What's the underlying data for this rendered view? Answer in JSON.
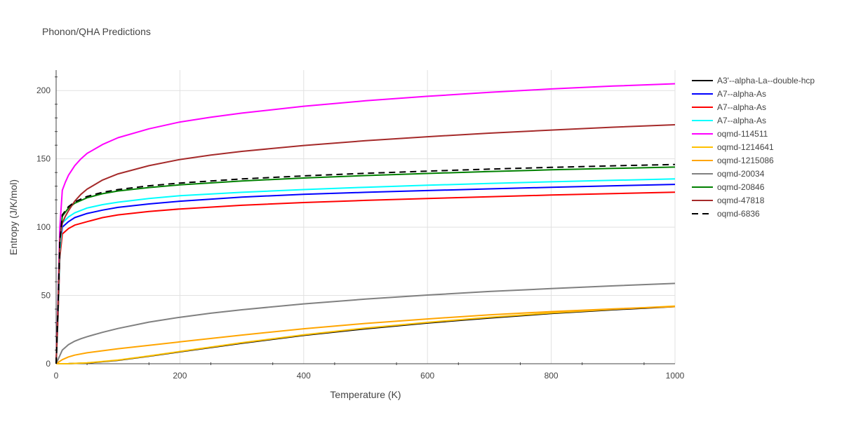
{
  "chart_data": {
    "type": "line",
    "title": "Phonon/QHA Predictions",
    "xlabel": "Temperature (K)",
    "ylabel": "Entropy (J/K/mol)",
    "xlim": [
      0,
      1000
    ],
    "ylim": [
      0,
      215
    ],
    "x_ticks": [
      0,
      200,
      400,
      600,
      800,
      1000
    ],
    "y_ticks": [
      0,
      50,
      100,
      150,
      200
    ],
    "grid": true,
    "legend_position": "right",
    "series": [
      {
        "name": "A3'--alpha-La--double-hcp",
        "color": "#000000",
        "dash": "solid",
        "x": [
          0,
          20,
          50,
          100,
          150,
          200,
          300,
          400,
          500,
          600,
          700,
          800,
          900,
          1000
        ],
        "y": [
          0,
          0.05,
          0.5,
          2.5,
          5.5,
          8.7,
          15,
          20.8,
          25.6,
          29.8,
          33.5,
          36.8,
          39.5,
          41.8
        ]
      },
      {
        "name": "A7--alpha-As",
        "color": "#0000ff",
        "dash": "solid",
        "x": [
          0,
          3,
          6,
          10,
          20,
          30,
          50,
          75,
          100,
          150,
          200,
          300,
          400,
          500,
          600,
          700,
          800,
          900,
          1000
        ],
        "y": [
          0,
          35,
          80,
          100,
          104,
          107,
          110,
          112.5,
          114.5,
          117,
          119,
          122,
          124,
          125.5,
          126.8,
          128,
          129.2,
          130.3,
          131.3
        ]
      },
      {
        "name": "A7--alpha-As",
        "color": "#ff0000",
        "dash": "solid",
        "x": [
          0,
          3,
          6,
          10,
          20,
          30,
          50,
          75,
          100,
          150,
          200,
          300,
          400,
          500,
          600,
          700,
          800,
          900,
          1000
        ],
        "y": [
          0,
          33,
          78,
          95,
          99,
          101.5,
          104,
          107,
          109,
          111.5,
          113.3,
          116,
          118,
          119.6,
          121,
          122.3,
          123.5,
          124.6,
          125.6
        ]
      },
      {
        "name": "A7--alpha-As",
        "color": "#00ffff",
        "dash": "solid",
        "x": [
          0,
          3,
          6,
          10,
          20,
          30,
          50,
          75,
          100,
          150,
          200,
          300,
          400,
          500,
          600,
          700,
          800,
          900,
          1000
        ],
        "y": [
          0,
          36,
          82,
          103,
          107.5,
          110.5,
          114,
          116.5,
          118.3,
          121,
          123,
          125.5,
          127.5,
          129.2,
          130.7,
          132,
          133.2,
          134.3,
          135.3
        ]
      },
      {
        "name": "oqmd-114511",
        "color": "#ff00ff",
        "dash": "solid",
        "x": [
          0,
          3,
          6,
          10,
          15,
          20,
          30,
          40,
          50,
          75,
          100,
          150,
          200,
          250,
          300,
          400,
          500,
          600,
          700,
          800,
          900,
          1000
        ],
        "y": [
          0,
          45,
          100,
          127,
          133,
          138,
          145,
          150,
          154,
          160.5,
          165.5,
          172,
          177,
          180.5,
          183.5,
          188.5,
          192.5,
          195.8,
          198.7,
          201.2,
          203.3,
          205
        ]
      },
      {
        "name": "oqmd-1214641",
        "color": "#ffc000",
        "dash": "solid",
        "x": [
          0,
          20,
          50,
          100,
          150,
          200,
          300,
          400,
          500,
          600,
          700,
          800,
          900,
          1000
        ],
        "y": [
          0,
          0.07,
          0.6,
          2.7,
          5.7,
          9,
          15.4,
          21.2,
          26.1,
          30.3,
          34,
          37.2,
          39.9,
          42.2
        ]
      },
      {
        "name": "oqmd-1215086",
        "color": "#ffa500",
        "dash": "solid",
        "x": [
          0,
          5,
          10,
          20,
          30,
          50,
          75,
          100,
          150,
          200,
          300,
          400,
          500,
          600,
          700,
          800,
          900,
          1000
        ],
        "y": [
          0,
          1.5,
          3,
          5,
          6.3,
          8,
          9.5,
          11,
          13.5,
          16,
          21,
          25.6,
          29.5,
          32.8,
          35.8,
          38.2,
          40.2,
          41.8
        ]
      },
      {
        "name": "oqmd-20034",
        "color": "#808080",
        "dash": "solid",
        "x": [
          0,
          5,
          10,
          20,
          30,
          40,
          50,
          75,
          100,
          150,
          200,
          250,
          300,
          400,
          500,
          600,
          700,
          800,
          900,
          1000
        ],
        "y": [
          0,
          5,
          10,
          14,
          16.5,
          18.3,
          19.8,
          23,
          25.8,
          30.5,
          34,
          37,
          39.5,
          43.8,
          47.3,
          50.3,
          52.9,
          55,
          57,
          58.8
        ]
      },
      {
        "name": "oqmd-20846",
        "color": "#008000",
        "dash": "solid",
        "x": [
          0,
          3,
          6,
          10,
          15,
          20,
          30,
          50,
          75,
          100,
          150,
          200,
          300,
          400,
          500,
          600,
          700,
          800,
          900,
          1000
        ],
        "y": [
          0,
          40,
          90,
          108,
          111,
          114,
          117.5,
          121.5,
          124.5,
          126.5,
          129,
          131,
          133.8,
          136,
          137.8,
          139.3,
          140.7,
          142,
          143,
          144
        ]
      },
      {
        "name": "oqmd-47818",
        "color": "#a52a2a",
        "dash": "solid",
        "x": [
          0,
          3,
          6,
          10,
          15,
          20,
          30,
          40,
          50,
          75,
          100,
          150,
          200,
          250,
          300,
          400,
          500,
          600,
          700,
          800,
          900,
          1000
        ],
        "y": [
          0,
          40,
          90,
          103,
          108,
          112,
          119,
          124,
          127.8,
          134.5,
          139,
          145,
          149.5,
          152.8,
          155.5,
          159.8,
          163.3,
          166.2,
          168.8,
          171.1,
          173.2,
          175
        ]
      },
      {
        "name": "oqmd-6836",
        "color": "#000000",
        "dash": "dash",
        "x": [
          0,
          3,
          6,
          10,
          15,
          20,
          30,
          50,
          75,
          100,
          150,
          200,
          300,
          400,
          500,
          600,
          700,
          800,
          900,
          1000
        ],
        "y": [
          0,
          40,
          90,
          109,
          112,
          115,
          118.5,
          122.5,
          125.5,
          127.5,
          130.3,
          132.3,
          135.3,
          137.5,
          139.4,
          141,
          142.5,
          143.8,
          144.9,
          145.9
        ]
      }
    ]
  }
}
